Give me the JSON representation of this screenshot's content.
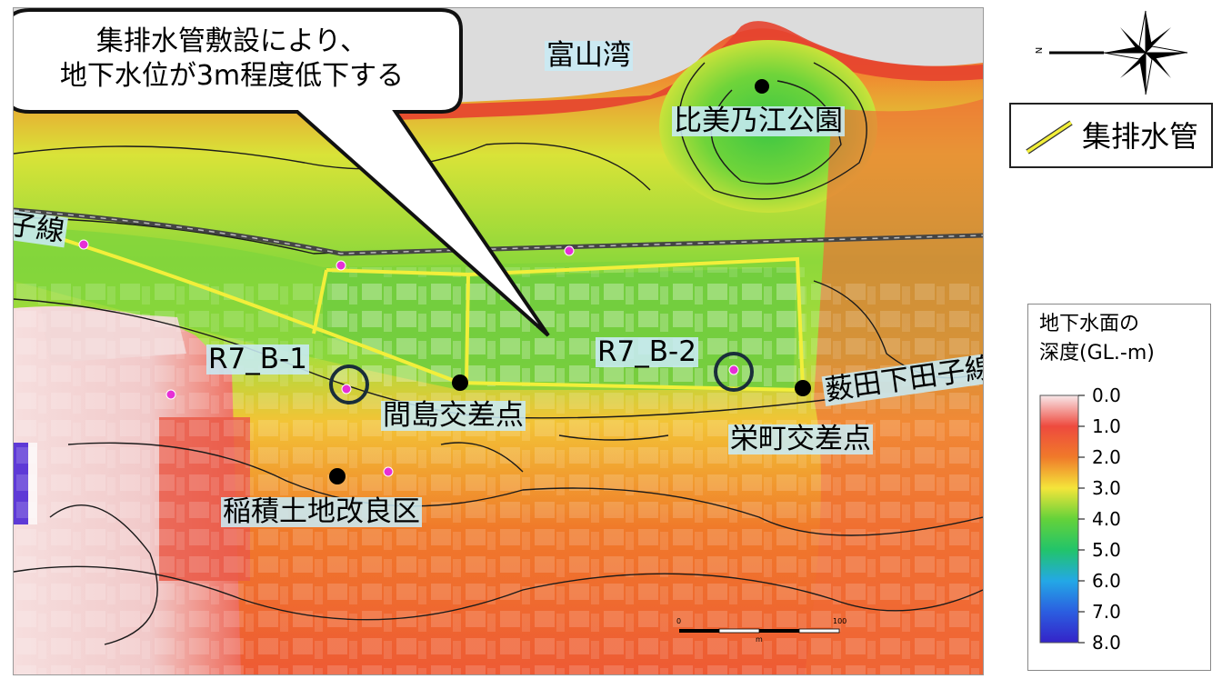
{
  "map": {
    "place_labels": {
      "bay": "富山湾",
      "park": "比美乃江公園",
      "line_left": "子線",
      "line_right": "薮田下田子線",
      "intersection_majima": "間島交差点",
      "intersection_sakae": "栄町交差点",
      "district": "稲積土地改良区"
    },
    "wells": [
      "R7_B-1",
      "R7_B-2"
    ],
    "callout": {
      "line1": "集排水管敷設により、",
      "line2": "地下水位が3m程度低下する"
    },
    "scale_bar": {
      "start": "0",
      "end": "100",
      "unit": "m"
    },
    "colors": {
      "pipe": "#f2ef3a",
      "contour": "#1a1a1a",
      "sea": "#dcdcdc"
    }
  },
  "north_arrow": {
    "icon": "compass-rose-icon",
    "letter": "N"
  },
  "legend_pipe": {
    "label": "集排水管"
  },
  "legend_depth": {
    "title_line1": "地下水面の",
    "title_line2": "深度(GL.-m)",
    "ticks": [
      "0.0",
      "1.0",
      "2.0",
      "3.0",
      "4.0",
      "5.0",
      "6.0",
      "7.0",
      "8.0"
    ],
    "colors": [
      "#f8e8ea",
      "#ee4a3e",
      "#f07a2a",
      "#f4e53a",
      "#64d23a",
      "#22c46a",
      "#23a8e6",
      "#2b5ee0",
      "#3423c8"
    ]
  }
}
